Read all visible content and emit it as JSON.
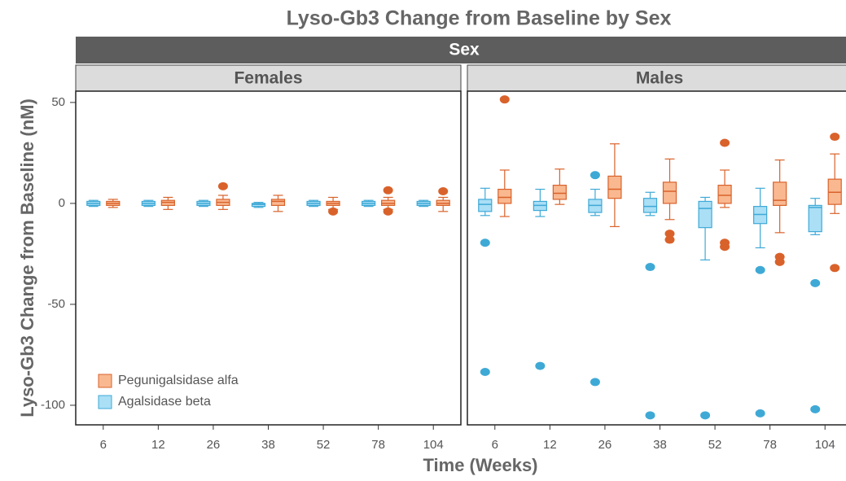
{
  "chart_data": {
    "type": "box",
    "title": "Lyso-Gb3 Change from Baseline by Sex",
    "facet_title": "Sex",
    "x_label": "Time (Weeks)",
    "y_label": "Lyso-Gb3 Change from Baseline (nM)",
    "categories": [
      "6",
      "12",
      "26",
      "38",
      "52",
      "78",
      "104"
    ],
    "ylim": [
      -109.7,
      55.6
    ],
    "yticks": [
      50,
      0,
      -50,
      -100
    ],
    "legend": "bottom-left",
    "series": [
      {
        "name": "Pegunigalsidase alfa",
        "color": "#d9622b",
        "fill": "#f9b890"
      },
      {
        "name": "Agalsidase beta",
        "color": "#3fa9d6",
        "fill": "#aadff6"
      }
    ],
    "facets": [
      {
        "label": "Females",
        "boxes": [
          [
            {
              "min": -2,
              "q1": -1,
              "median": 0,
              "q3": 1,
              "max": 2,
              "outliers": []
            },
            {
              "min": -3,
              "q1": -1,
              "median": 0.5,
              "q3": 1.5,
              "max": 3,
              "outliers": []
            },
            {
              "min": -3,
              "q1": -1,
              "median": 0.5,
              "q3": 2,
              "max": 4,
              "outliers": [
                8.5
              ]
            },
            {
              "min": -4,
              "q1": -1,
              "median": 1,
              "q3": 2,
              "max": 4,
              "outliers": []
            },
            {
              "min": -3,
              "q1": -1,
              "median": 0,
              "q3": 1,
              "max": 3,
              "outliers": [
                -4
              ]
            },
            {
              "min": -3,
              "q1": -1,
              "median": 0,
              "q3": 1.5,
              "max": 3,
              "outliers": [
                6.5,
                -4
              ]
            },
            {
              "min": -4,
              "q1": -1,
              "median": 0,
              "q3": 1.5,
              "max": 3,
              "outliers": [
                6
              ]
            }
          ],
          [
            {
              "min": -1.5,
              "q1": -1,
              "median": 0,
              "q3": 1,
              "max": 1.5,
              "outliers": []
            },
            {
              "min": -1.5,
              "q1": -1,
              "median": 0,
              "q3": 1,
              "max": 1.5,
              "outliers": []
            },
            {
              "min": -1.5,
              "q1": -1,
              "median": 0,
              "q3": 1,
              "max": 1.5,
              "outliers": []
            },
            {
              "min": -2,
              "q1": -1.5,
              "median": -0.5,
              "q3": 0,
              "max": 0.5,
              "outliers": []
            },
            {
              "min": -1.5,
              "q1": -1,
              "median": 0,
              "q3": 1,
              "max": 1.5,
              "outliers": []
            },
            {
              "min": -1.5,
              "q1": -1,
              "median": 0,
              "q3": 1,
              "max": 1.5,
              "outliers": []
            },
            {
              "min": -1.5,
              "q1": -1,
              "median": 0,
              "q3": 1,
              "max": 1.5,
              "outliers": []
            }
          ]
        ]
      },
      {
        "label": "Males",
        "boxes": [
          [
            {
              "min": -6.5,
              "q1": 0,
              "median": 3,
              "q3": 7,
              "max": 16.5,
              "outliers": [
                51.5
              ]
            },
            {
              "min": -0.5,
              "q1": 2,
              "median": 5,
              "q3": 9,
              "max": 17,
              "outliers": []
            },
            {
              "min": -11.5,
              "q1": 2.5,
              "median": 7,
              "q3": 13.5,
              "max": 29.5,
              "outliers": []
            },
            {
              "min": -8,
              "q1": 0,
              "median": 6,
              "q3": 10.5,
              "max": 22,
              "outliers": [
                -15,
                -18
              ]
            },
            {
              "min": -2,
              "q1": 0,
              "median": 4,
              "q3": 9,
              "max": 16.5,
              "outliers": [
                30,
                -19.5,
                -21.5
              ]
            },
            {
              "min": -14.5,
              "q1": -1,
              "median": 1.5,
              "q3": 10.5,
              "max": 21.5,
              "outliers": [
                -26.5,
                -29
              ]
            },
            {
              "min": -5,
              "q1": -0.5,
              "median": 5.5,
              "q3": 12,
              "max": 24.5,
              "outliers": [
                33,
                -32
              ]
            }
          ],
          [
            {
              "min": -6,
              "q1": -4,
              "median": -0.5,
              "q3": 2,
              "max": 7.5,
              "outliers": [
                -19.5,
                -83.5
              ]
            },
            {
              "min": -6.5,
              "q1": -3.5,
              "median": -1,
              "q3": 1,
              "max": 7,
              "outliers": [
                -80.5
              ]
            },
            {
              "min": -6,
              "q1": -4.5,
              "median": -1,
              "q3": 2,
              "max": 7,
              "outliers": [
                14,
                -88.5
              ]
            },
            {
              "min": -6,
              "q1": -4.5,
              "median": -1.5,
              "q3": 2.5,
              "max": 5.5,
              "outliers": [
                -31.5,
                -105
              ]
            },
            {
              "min": -28,
              "q1": -12,
              "median": -2.5,
              "q3": 1,
              "max": 3,
              "outliers": [
                -105
              ]
            },
            {
              "min": -22,
              "q1": -10,
              "median": -5.5,
              "q3": -1.5,
              "max": 7.5,
              "outliers": [
                -33,
                -104
              ]
            },
            {
              "min": -15.5,
              "q1": -14,
              "median": -2,
              "q3": -1,
              "max": 2.5,
              "outliers": [
                -39.5,
                -102
              ]
            }
          ]
        ]
      }
    ]
  }
}
